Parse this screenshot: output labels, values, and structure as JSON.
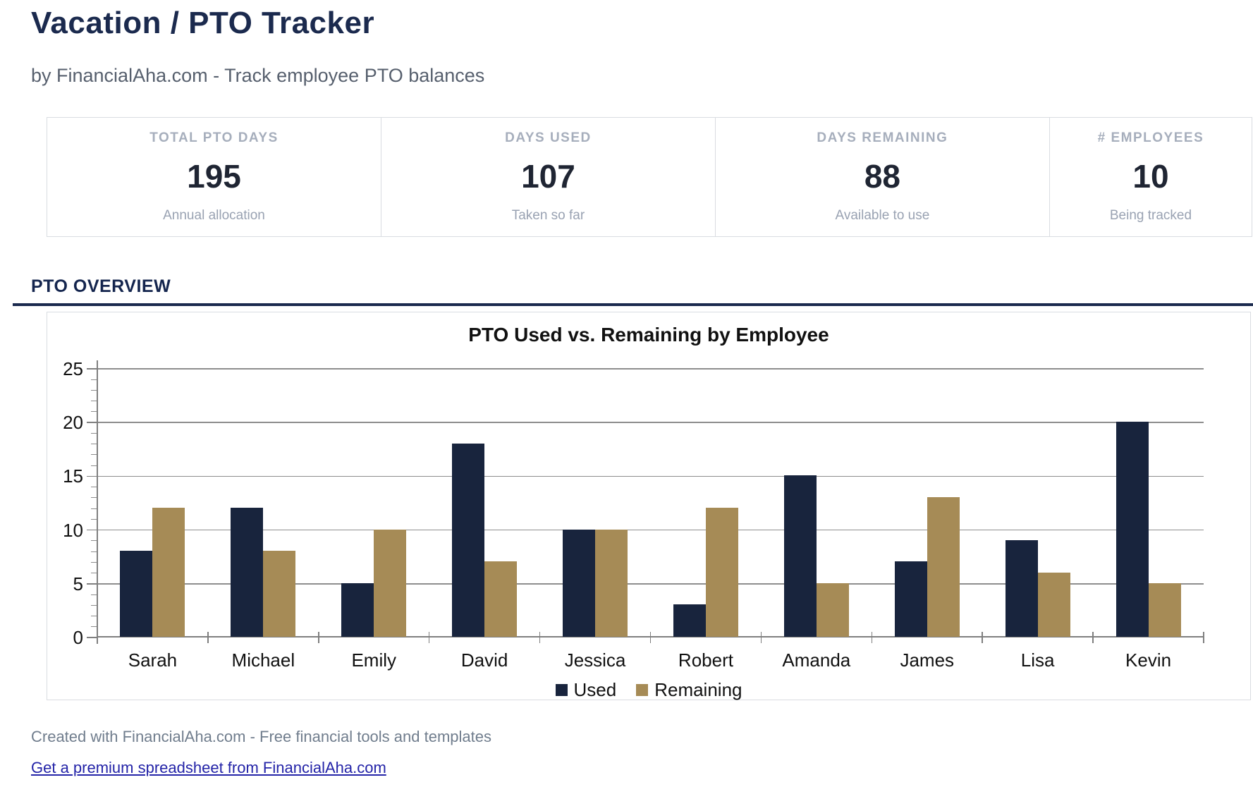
{
  "header": {
    "title": "Vacation / PTO Tracker",
    "subtitle": "by FinancialAha.com - Track employee PTO balances"
  },
  "stats": {
    "cards": [
      {
        "label": "TOTAL PTO DAYS",
        "value": "195",
        "sublabel": "Annual allocation"
      },
      {
        "label": "DAYS USED",
        "value": "107",
        "sublabel": "Taken so far"
      },
      {
        "label": "DAYS REMAINING",
        "value": "88",
        "sublabel": "Available to use"
      },
      {
        "label": "# EMPLOYEES",
        "value": "10",
        "sublabel": "Being tracked"
      }
    ]
  },
  "section": {
    "title": "PTO OVERVIEW"
  },
  "chart_data": {
    "type": "bar",
    "title": "PTO Used vs. Remaining by Employee",
    "categories": [
      "Sarah",
      "Michael",
      "Emily",
      "David",
      "Jessica",
      "Robert",
      "Amanda",
      "James",
      "Lisa",
      "Kevin"
    ],
    "series": [
      {
        "name": "Used",
        "color": "#18243d",
        "values": [
          8,
          12,
          5,
          18,
          10,
          3,
          15,
          7,
          9,
          20
        ]
      },
      {
        "name": "Remaining",
        "color": "#a68b56",
        "values": [
          12,
          8,
          10,
          7,
          10,
          12,
          5,
          13,
          6,
          5
        ]
      }
    ],
    "ylim": [
      0,
      25
    ],
    "ytick_step": 5,
    "minor_tick_step": 1,
    "grid": true,
    "legend_position": "bottom"
  },
  "footer": {
    "credit": "Created with FinancialAha.com - Free financial tools and templates",
    "link_label": "Get a premium spreadsheet from FinancialAha.com"
  },
  "colors": {
    "accent_navy": "#1b2a4e",
    "used_bar": "#18243d",
    "remaining_bar": "#a68b56",
    "link_blue": "#2424a8"
  }
}
